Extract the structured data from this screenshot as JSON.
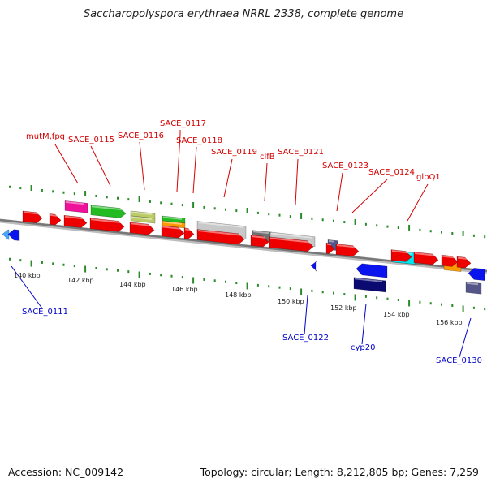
{
  "title": "Saccharopolyspora erythraea NRRL 2338, complete genome",
  "footer": {
    "accession": "Accession: NC_009142",
    "topology": "Topology: circular; Length: 8,212,805 bp; Genes: 7,259"
  },
  "colors": {
    "backbone": "#8a8a8a",
    "tick": "#2a8a2a",
    "forward_label": "#d40000",
    "reverse_label": "#0000c8",
    "gene_red": "#ee0000",
    "gene_magenta": "#ee1199",
    "gene_green": "#22bb22",
    "gene_khaki": "#bbcc66",
    "gene_orange": "#ff9900",
    "gene_lightgray": "#c8c8c8",
    "gene_darkgray": "#707070",
    "gene_slate": "#55558a",
    "gene_cyan": "#00e5ee",
    "gene_blue": "#0a14ee",
    "gene_navy": "#0a0a70",
    "gene_lightblue": "#44aaff"
  },
  "scale_ticks": [
    "140 kbp",
    "142 kbp",
    "144 kbp",
    "146 kbp",
    "148 kbp",
    "150 kbp",
    "152 kbp",
    "154 kbp",
    "156 kbp"
  ],
  "forward_labels": [
    "mutM,fpg",
    "SACE_0115",
    "SACE_0116",
    "SACE_0117",
    "SACE_0118",
    "SACE_0119",
    "clfB",
    "SACE_0121",
    "SACE_0123",
    "SACE_0124",
    "glpQ1"
  ],
  "reverse_labels": [
    "SACE_0111",
    "SACE_0122",
    "cyp20",
    "SACE_0130"
  ]
}
